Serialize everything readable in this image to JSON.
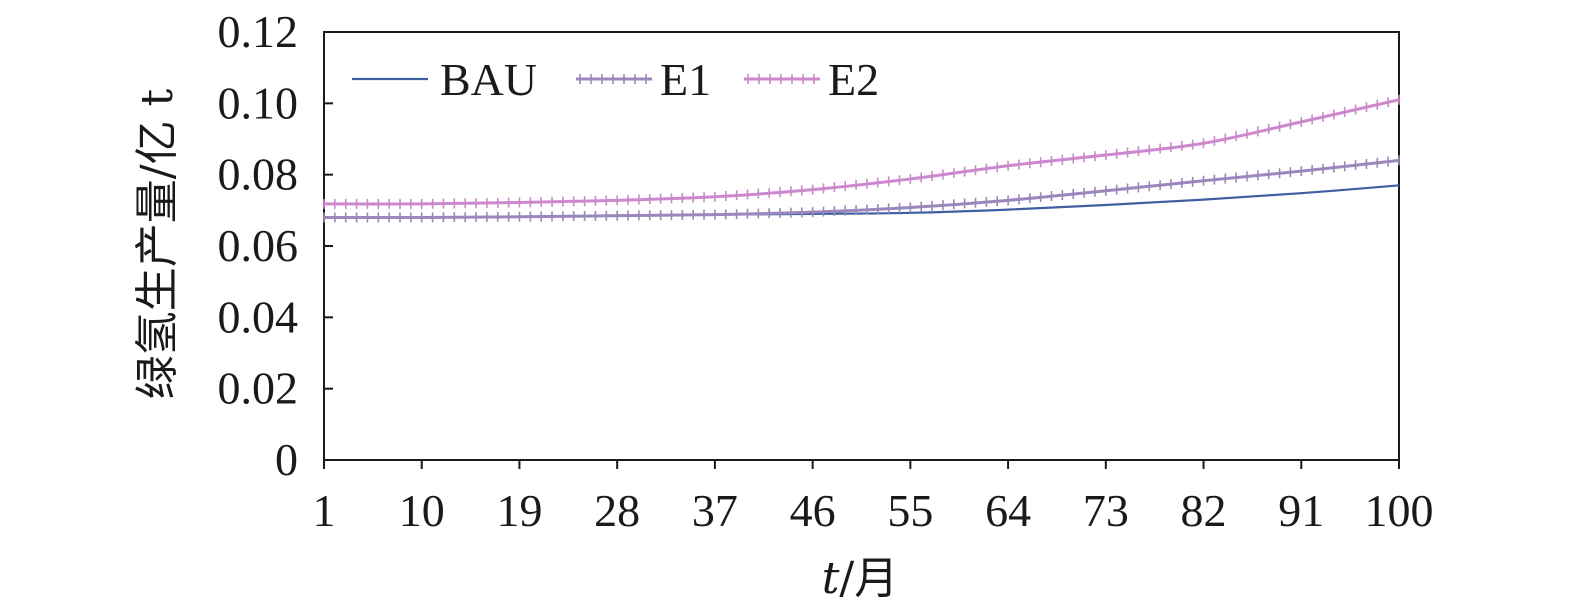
{
  "chart_data": {
    "type": "line",
    "xlabel_italic": "t",
    "xlabel_rest": "/月",
    "ylabel": "绿氢生产量/亿 t",
    "ylim": [
      0,
      0.12
    ],
    "yticks": [
      "0",
      "0.02",
      "0.04",
      "0.06",
      "0.08",
      "0.10",
      "0.12"
    ],
    "ytick_values": [
      0,
      0.02,
      0.04,
      0.06,
      0.08,
      0.1,
      0.12
    ],
    "xlim": [
      1,
      100
    ],
    "xticks": [
      "1",
      "10",
      "19",
      "28",
      "37",
      "46",
      "55",
      "64",
      "73",
      "82",
      "91",
      "100"
    ],
    "xtick_values": [
      1,
      10,
      19,
      28,
      37,
      46,
      55,
      64,
      73,
      82,
      91,
      100
    ],
    "grid": false,
    "legend_position": "top-left",
    "series": [
      {
        "name": "BAU",
        "color": "#3e5fa3",
        "marker": "none",
        "x": [
          1,
          10,
          19,
          28,
          37,
          46,
          55,
          64,
          73,
          82,
          91,
          100
        ],
        "values": [
          0.068,
          0.068,
          0.0682,
          0.0685,
          0.0688,
          0.069,
          0.0693,
          0.0702,
          0.0715,
          0.073,
          0.0748,
          0.077
        ]
      },
      {
        "name": "E1",
        "color": "#9a88bd",
        "marker": "tick",
        "x": [
          1,
          10,
          19,
          28,
          37,
          46,
          55,
          64,
          73,
          82,
          91,
          100
        ],
        "values": [
          0.068,
          0.068,
          0.0682,
          0.0685,
          0.0688,
          0.0695,
          0.0708,
          0.0728,
          0.0755,
          0.0783,
          0.081,
          0.084
        ]
      },
      {
        "name": "E2",
        "color": "#cc88cc",
        "marker": "tick",
        "x": [
          1,
          10,
          19,
          28,
          37,
          46,
          55,
          64,
          73,
          82,
          91,
          100
        ],
        "values": [
          0.0718,
          0.0718,
          0.0722,
          0.0728,
          0.0738,
          0.0758,
          0.0788,
          0.0825,
          0.0855,
          0.0888,
          0.0948,
          0.101
        ]
      }
    ]
  }
}
